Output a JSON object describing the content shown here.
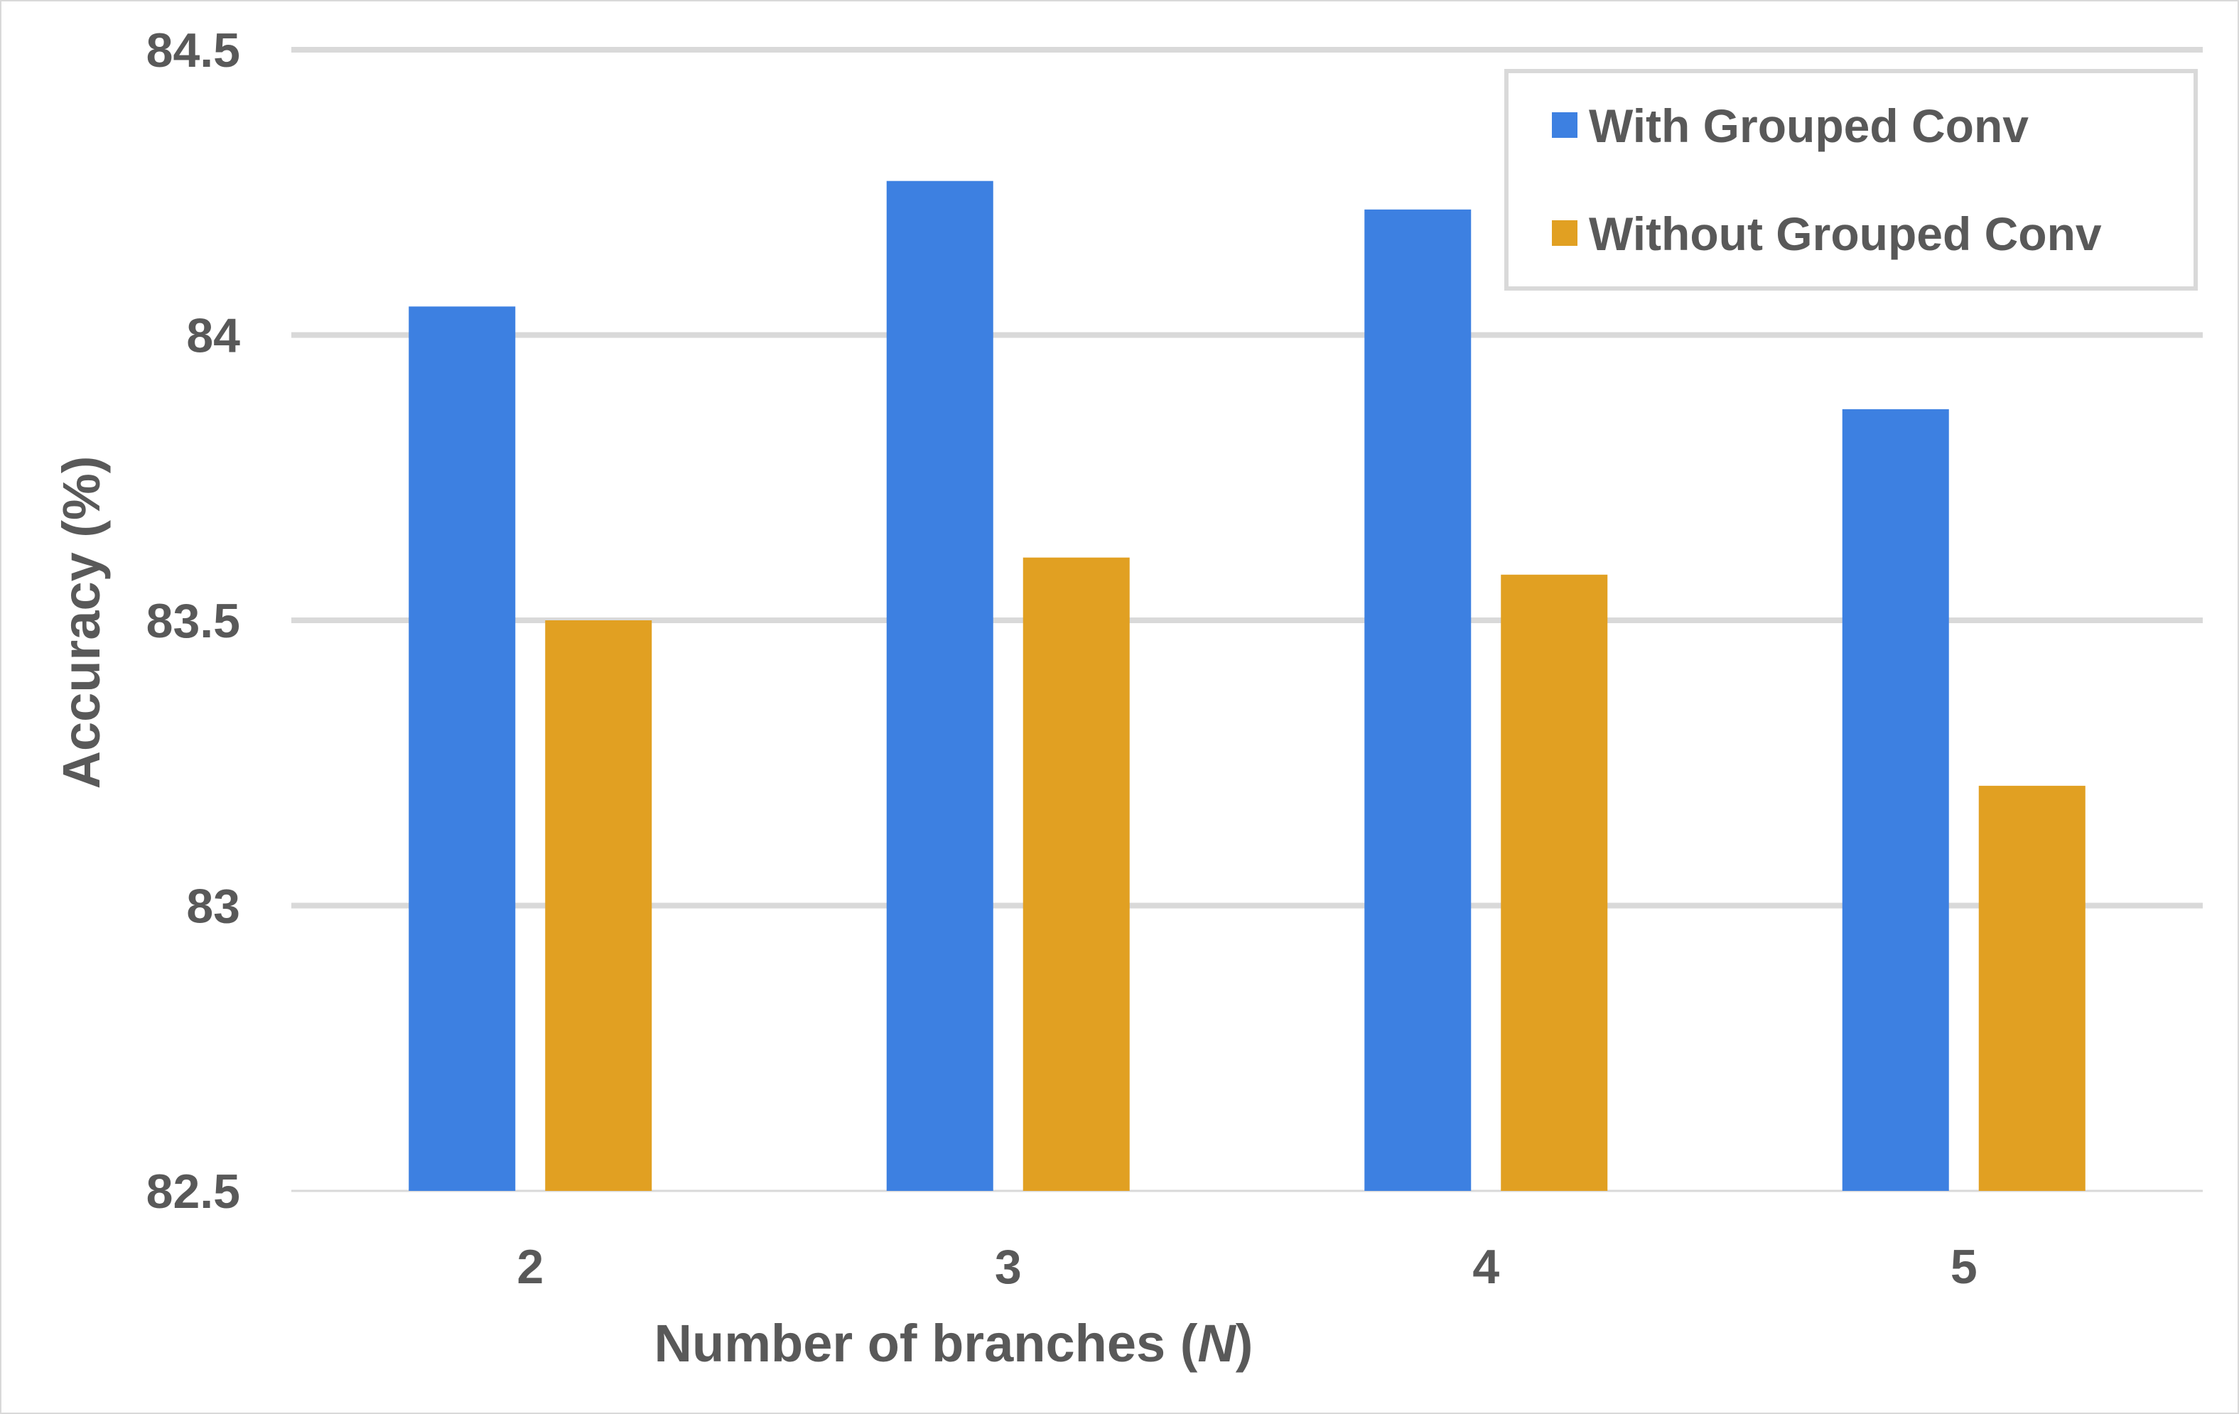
{
  "chart_data": {
    "type": "bar",
    "title": "",
    "xlabel": "Number of branches (",
    "xlabel_var": "N",
    "xlabel_suffix": ")",
    "ylabel": "Accuracy (%)",
    "ylim": [
      82.5,
      84.5
    ],
    "yticks": [
      82.5,
      83,
      83.5,
      84,
      84.5
    ],
    "ytick_labels": [
      "82.5",
      "83",
      "83.5",
      "84",
      "84.5"
    ],
    "categories": [
      "2",
      "3",
      "4",
      "5"
    ],
    "grid": true,
    "legend_position": "top-right",
    "series": [
      {
        "name": "With Grouped Conv",
        "color": "#3d80e1",
        "values": [
          84.05,
          84.27,
          84.22,
          83.87
        ]
      },
      {
        "name": "Without Grouped Conv",
        "color": "#e1a022",
        "values": [
          83.5,
          83.61,
          83.58,
          83.21
        ]
      }
    ]
  }
}
